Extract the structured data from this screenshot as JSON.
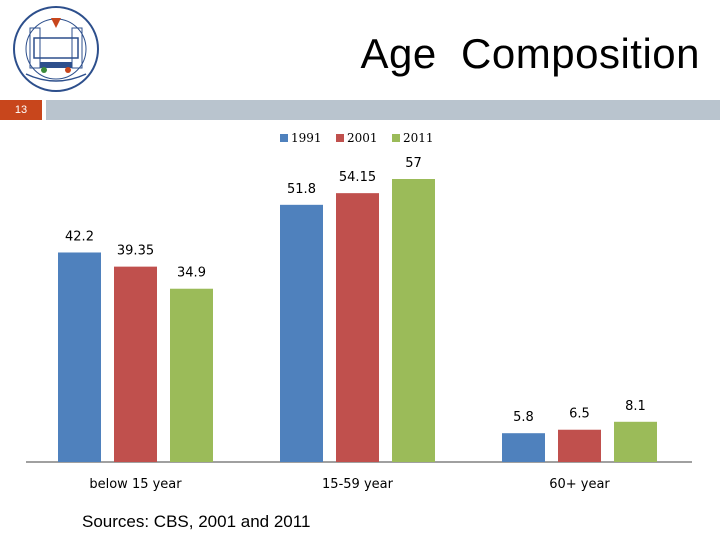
{
  "slide": {
    "title": "Age  Composition",
    "number": "13",
    "sources": "Sources: CBS, 2001 and 2011"
  },
  "colors": {
    "band": "#b9c4ce",
    "number_box": "#c8461c"
  },
  "chart_data": {
    "type": "bar",
    "title": "",
    "xlabel": "",
    "ylabel": "",
    "categories": [
      "below 15 year",
      "15-59 year",
      "60+ year"
    ],
    "series": [
      {
        "name": "1991",
        "values": [
          42.2,
          51.8,
          5.8
        ],
        "labels": [
          "42.2",
          "51.8",
          "5.8"
        ],
        "color": "#4f81bd"
      },
      {
        "name": "2001",
        "values": [
          39.35,
          54.15,
          6.5
        ],
        "labels": [
          "39.35",
          "54.15",
          "6.5"
        ],
        "color": "#c0504d"
      },
      {
        "name": "2011",
        "values": [
          34.9,
          57,
          8.1
        ],
        "labels": [
          "34.9",
          "57",
          "8.1"
        ],
        "color": "#9bbb59"
      }
    ],
    "ylim": [
      0,
      60
    ],
    "grid": false,
    "legend": "top"
  }
}
